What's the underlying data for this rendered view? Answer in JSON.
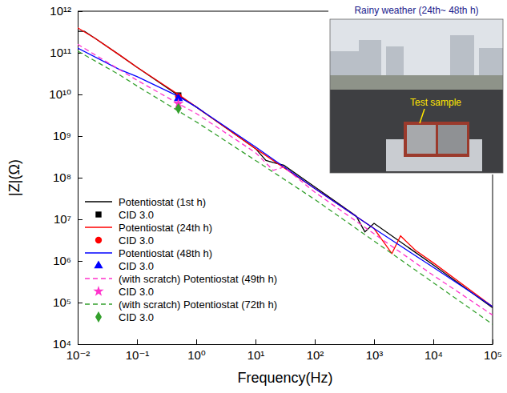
{
  "chart_data": {
    "type": "line",
    "x_label": "Frequency(Hz)",
    "y_label": "|Z|(Ω)",
    "log": true,
    "grid": false,
    "legend": "lower left",
    "xlim": [
      0.01,
      100000
    ],
    "ylim": [
      10000,
      1000000000000
    ],
    "xticks": [
      {
        "value": 0.01,
        "label": "10⁻²"
      },
      {
        "value": 0.1,
        "label": "10⁻¹"
      },
      {
        "value": 1,
        "label": "10⁰"
      },
      {
        "value": 10,
        "label": "10¹"
      },
      {
        "value": 100,
        "label": "10²"
      },
      {
        "value": 1000,
        "label": "10³"
      },
      {
        "value": 10000,
        "label": "10⁴"
      },
      {
        "value": 100000,
        "label": "10⁵"
      }
    ],
    "yticks": [
      {
        "value": 10000,
        "label": "10⁴"
      },
      {
        "value": 100000,
        "label": "10⁵"
      },
      {
        "value": 1000000,
        "label": "10⁶"
      },
      {
        "value": 10000000,
        "label": "10⁷"
      },
      {
        "value": 100000000,
        "label": "10⁸"
      },
      {
        "value": 1000000000,
        "label": "10⁹"
      },
      {
        "value": 10000000000,
        "label": "10¹⁰"
      },
      {
        "value": 100000000000,
        "label": "10¹¹"
      },
      {
        "value": 1000000000000,
        "label": "10¹²"
      }
    ],
    "annotations": [
      "Rainy weather (24th~ 48th h)",
      "Test sample"
    ],
    "series": [
      {
        "name": "Potentiostat (1st h)",
        "type": "line",
        "color": "#000000",
        "line_style": "solid",
        "x": [
          0.01,
          0.013,
          0.02,
          0.05,
          0.1,
          0.5,
          1,
          5,
          10,
          15,
          20,
          30,
          100,
          500,
          700,
          1000,
          5000,
          10000,
          100000
        ],
        "values": [
          330000000000.0,
          330000000000.0,
          220000000000.0,
          90000000000.0,
          45000000000.0,
          9500000000.0,
          5000000000.0,
          1000000000.0,
          500000000.0,
          260000000.0,
          230000000.0,
          200000000.0,
          60000000.0,
          12000000.0,
          5000000.0,
          8000000.0,
          1600000.0,
          800000.0,
          75000.0
        ]
      },
      {
        "name": "CID 3.0",
        "type": "scatter",
        "color": "#000000",
        "marker": "square",
        "x": [
          0.5
        ],
        "values": [
          9500000000.0
        ]
      },
      {
        "name": "Potentiostat (24th h)",
        "type": "line",
        "color": "#ff0000",
        "line_style": "solid",
        "x": [
          0.01,
          0.02,
          0.05,
          0.1,
          0.5,
          1,
          10,
          100,
          1000,
          2000,
          2800,
          5000,
          10000,
          100000
        ],
        "values": [
          400000000000.0,
          220000000000.0,
          90000000000.0,
          45000000000.0,
          10000000000.0,
          5000000000.0,
          500000000.0,
          55000000.0,
          6000000.0,
          1500000.0,
          4000000.0,
          1800000.0,
          900000.0,
          80000.0
        ]
      },
      {
        "name": "CID 3.0",
        "type": "scatter",
        "color": "#ff0000",
        "marker": "circle",
        "x": [
          0.5
        ],
        "values": [
          9000000000.0
        ]
      },
      {
        "name": "Potentiostat (48th h)",
        "type": "line",
        "color": "#0000ff",
        "line_style": "solid",
        "x": [
          0.01,
          0.05,
          0.1,
          0.5,
          1,
          10,
          100,
          1000,
          10000,
          100000
        ],
        "values": [
          130000000000.0,
          40000000000.0,
          27000000000.0,
          9000000000.0,
          5000000000.0,
          550000000.0,
          55000000.0,
          6000000.0,
          700000.0,
          80000.0
        ]
      },
      {
        "name": "CID 3.0",
        "type": "scatter",
        "color": "#0000ff",
        "marker": "triangle",
        "x": [
          0.5
        ],
        "values": [
          8000000000.0
        ]
      },
      {
        "name": "(with scratch) Potentiostat (49th h)",
        "type": "line",
        "color": "#ff33cc",
        "line_style": "dashed",
        "x": [
          0.01,
          0.05,
          0.1,
          0.5,
          1,
          10,
          20,
          30,
          100,
          1000,
          10000,
          100000
        ],
        "values": [
          160000000000.0,
          40000000000.0,
          22000000000.0,
          6000000000.0,
          3500000000.0,
          400000000.0,
          150000000.0,
          180000000.0,
          45000000.0,
          4500000.0,
          450000.0,
          50000.0
        ]
      },
      {
        "name": "CID 3.0",
        "type": "scatter",
        "color": "#ff33cc",
        "marker": "star",
        "x": [
          0.5
        ],
        "values": [
          6000000000.0
        ]
      },
      {
        "name": "(with scratch) Potentiostat (72th h)",
        "type": "line",
        "color": "#33a02c",
        "line_style": "dashed",
        "x": [
          0.01,
          0.05,
          0.1,
          0.5,
          1,
          10,
          100,
          1000,
          10000,
          100000
        ],
        "values": [
          110000000000.0,
          30000000000.0,
          16000000000.0,
          4000000000.0,
          2200000000.0,
          260000000.0,
          30000000.0,
          3000000.0,
          300000.0,
          30000.0
        ]
      },
      {
        "name": "CID 3.0",
        "type": "scatter",
        "color": "#33a02c",
        "marker": "diamond",
        "x": [
          0.5
        ],
        "values": [
          4600000000.0
        ]
      }
    ]
  }
}
